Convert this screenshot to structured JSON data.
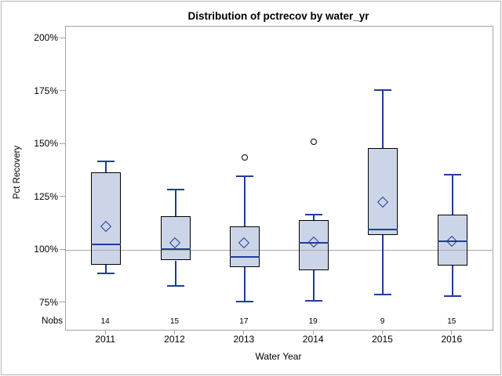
{
  "chart_data": {
    "type": "box",
    "title": "Distribution of pctrecov by water_yr",
    "xlabel": "Water Year",
    "ylabel": "Pct Recovery",
    "nobs_label": "Nobs",
    "y_ticks": [
      200,
      175,
      150,
      125,
      100,
      75
    ],
    "y_tick_suffix": "%",
    "ylim": [
      63,
      206
    ],
    "ref_line": 100,
    "grid": false,
    "legend": "none",
    "categories": [
      "2011",
      "2012",
      "2013",
      "2014",
      "2015",
      "2016"
    ],
    "nobs": [
      14,
      15,
      17,
      19,
      9,
      15
    ],
    "boxes": [
      {
        "category": "2011",
        "low": 89,
        "q1": 93,
        "median": 102.5,
        "mean": 111,
        "q3": 136.5,
        "high": 142,
        "outliers": []
      },
      {
        "category": "2012",
        "low": 83,
        "q1": 95,
        "median": 100.5,
        "mean": 103,
        "q3": 116,
        "high": 128.5,
        "outliers": []
      },
      {
        "category": "2013",
        "low": 75.5,
        "q1": 92,
        "median": 96.5,
        "mean": 103,
        "q3": 111,
        "high": 135,
        "outliers": [
          143.5
        ]
      },
      {
        "category": "2014",
        "low": 76,
        "q1": 90.5,
        "median": 103.5,
        "mean": 103.5,
        "q3": 114,
        "high": 116.5,
        "outliers": [
          151
        ]
      },
      {
        "category": "2015",
        "low": 79,
        "q1": 107,
        "median": 109.5,
        "mean": 122.5,
        "q3": 148,
        "high": 175.5,
        "outliers": []
      },
      {
        "category": "2016",
        "low": 78,
        "q1": 92.5,
        "median": 104,
        "mean": 104,
        "q3": 116.5,
        "high": 135.5,
        "outliers": []
      }
    ],
    "colors": {
      "box_fill": "#ccd5e8",
      "box_border": "#000000",
      "line_blue": "#1f3d99",
      "frame_gray": "#a3a3a3",
      "ref_gray": "#a8a8a8",
      "outlier": "#000000",
      "text": "#000000",
      "background": "#ffffff"
    }
  }
}
